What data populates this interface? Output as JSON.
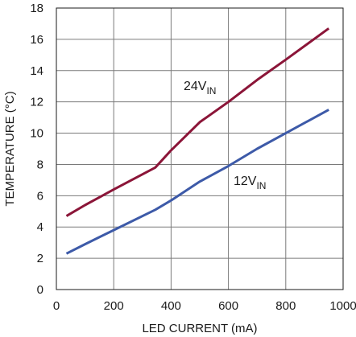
{
  "chart_data": {
    "type": "line",
    "title": "",
    "xlabel": "LED CURRENT (mA)",
    "ylabel": "TEMPERATURE (°C)",
    "xlim": [
      0,
      1000
    ],
    "ylim": [
      0,
      18
    ],
    "xticks": [
      0,
      200,
      400,
      600,
      800,
      1000
    ],
    "yticks": [
      0,
      2,
      4,
      6,
      8,
      10,
      12,
      14,
      16,
      18
    ],
    "grid": true,
    "series": [
      {
        "name_main": "24V",
        "name_sub": "IN",
        "color": "#8b1538",
        "points": [
          [
            35,
            4.7
          ],
          [
            100,
            5.4
          ],
          [
            200,
            6.4
          ],
          [
            345,
            7.8
          ],
          [
            400,
            8.9
          ],
          [
            500,
            10.7
          ],
          [
            600,
            12.0
          ],
          [
            700,
            13.4
          ],
          [
            800,
            14.7
          ],
          [
            950,
            16.7
          ]
        ]
      },
      {
        "name_main": "12V",
        "name_sub": "IN",
        "color": "#3d5aa8",
        "points": [
          [
            35,
            2.3
          ],
          [
            100,
            2.9
          ],
          [
            200,
            3.8
          ],
          [
            345,
            5.1
          ],
          [
            400,
            5.7
          ],
          [
            500,
            6.9
          ],
          [
            600,
            7.9
          ],
          [
            700,
            9.0
          ],
          [
            800,
            10.0
          ],
          [
            950,
            11.5
          ]
        ]
      }
    ]
  }
}
